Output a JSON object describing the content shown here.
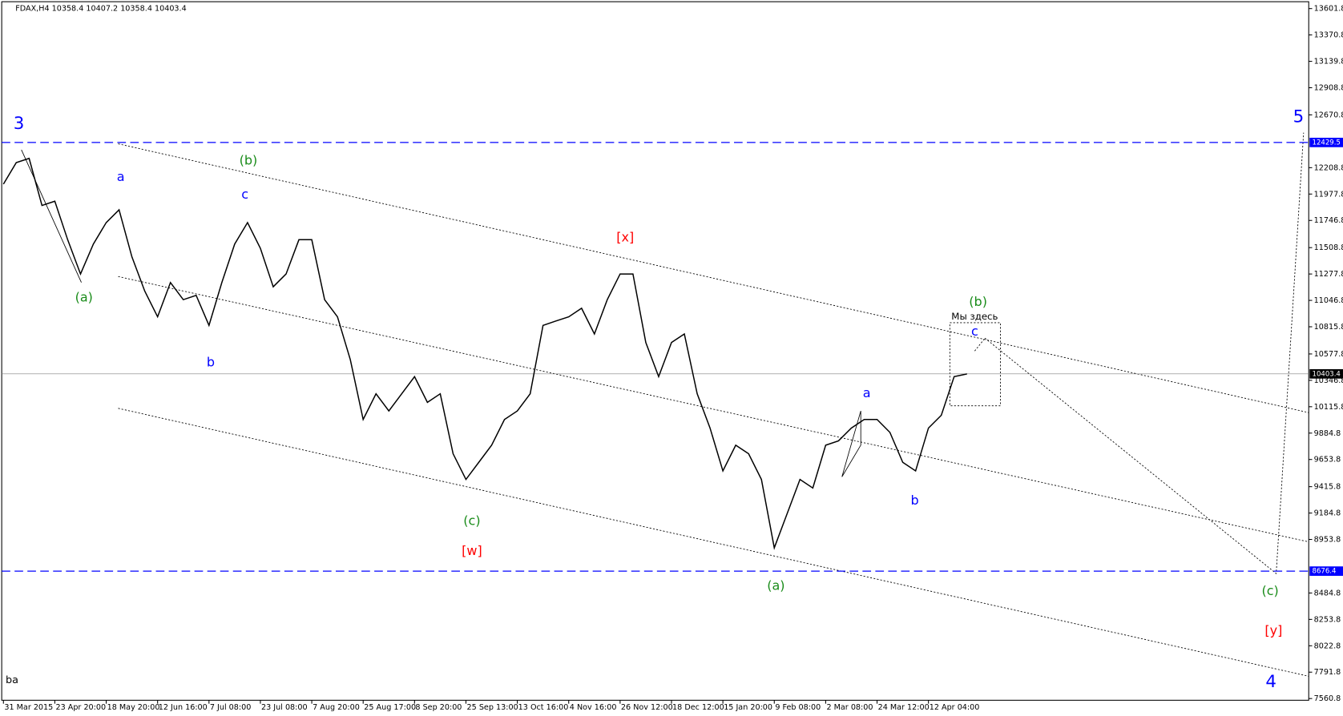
{
  "chart_data": {
    "type": "line",
    "title": "FDAX,H4  10358.4 10407.2 10358.4 10403.4",
    "categories": [
      "31 Mar 2015",
      null,
      null,
      null,
      "23 Apr 20:00",
      null,
      null,
      null,
      "18 May 20:00",
      null,
      null,
      null,
      "12 Jun 16:00",
      null,
      null,
      null,
      "7 Jul 08:00",
      null,
      null,
      null,
      "23 Jul 08:00",
      null,
      null,
      null,
      "7 Aug 20:00",
      null,
      null,
      null,
      "25 Aug 17:00",
      null,
      null,
      null,
      "8 Sep 20:00",
      null,
      null,
      null,
      "25 Sep 13:00",
      null,
      null,
      null,
      "13 Oct 16:00",
      null,
      null,
      null,
      "4 Nov 16:00",
      null,
      null,
      null,
      "26 Nov 12:00",
      null,
      null,
      null,
      "18 Dec 12:00",
      null,
      null,
      null,
      "15 Jan 20:00",
      null,
      null,
      null,
      "9 Feb 08:00",
      null,
      null,
      null,
      "2 Mar 08:00",
      null,
      null,
      null,
      "24 Mar 12:00",
      null,
      null,
      null,
      "12 Apr 04:00",
      null,
      null,
      null
    ],
    "values": [
      12065,
      12253,
      12290,
      11878,
      11915,
      11578,
      11278,
      11540,
      11728,
      11840,
      11428,
      11128,
      10903,
      11203,
      11053,
      11091,
      10828,
      11203,
      11540,
      11728,
      11503,
      11166,
      11278,
      11578,
      11578,
      11053,
      10903,
      10528,
      10004,
      10229,
      10079,
      10229,
      10379,
      10154,
      10229,
      9704,
      9479,
      9629,
      9779,
      10004,
      10079,
      10229,
      10828,
      10866,
      10903,
      10978,
      10753,
      11053,
      11278,
      11278,
      10678,
      10379,
      10678,
      10753,
      10229,
      9929,
      9554,
      9779,
      9704,
      9479,
      8880,
      9179,
      9479,
      9404,
      9779,
      9817,
      9929,
      10004,
      10004,
      9891,
      9629,
      9554,
      9929,
      10041,
      10379,
      10403
    ],
    "color": "#000000",
    "ylim": [
      7515.8,
      13676.8
    ],
    "yticks": [
      13601.8,
      13370.8,
      13139.8,
      12908.8,
      12670.8,
      12208.8,
      11977.8,
      11746.8,
      11508.8,
      11277.8,
      11046.8,
      10815.8,
      10577.8,
      10346.8,
      10115.8,
      9884.8,
      9653.8,
      9415.8,
      9184.8,
      8953.8,
      8484.8,
      8253.8,
      8022.8,
      7791.8,
      7560.8
    ],
    "levels": [
      {
        "value": 12429.5,
        "color": "#0000ff",
        "style": "dashed"
      },
      {
        "value": 10403.4,
        "color": "#808080",
        "style": "solid"
      },
      {
        "value": 8676.4,
        "color": "#0000ff",
        "style": "dashed"
      }
    ],
    "annotations": [
      {
        "text": "3",
        "color": "#0000ff"
      },
      {
        "text": "a",
        "color": "#0000ff"
      },
      {
        "text": "(b)",
        "color": "#1a8c1a"
      },
      {
        "text": "c",
        "color": "#0000ff"
      },
      {
        "text": "(a)",
        "color": "#1a8c1a"
      },
      {
        "text": "b",
        "color": "#0000ff"
      },
      {
        "text": "[x]",
        "color": "#ff0000"
      },
      {
        "text": "(c)",
        "color": "#1a8c1a"
      },
      {
        "text": "[w]",
        "color": "#ff0000"
      },
      {
        "text": "(a)",
        "color": "#1a8c1a"
      },
      {
        "text": "a",
        "color": "#0000ff"
      },
      {
        "text": "b",
        "color": "#0000ff"
      },
      {
        "text": "(b)",
        "color": "#1a8c1a"
      },
      {
        "text": "Мы здесь",
        "color": "#000000"
      },
      {
        "text": "c",
        "color": "#0000ff"
      },
      {
        "text": "5",
        "color": "#0000ff"
      },
      {
        "text": "(c)",
        "color": "#1a8c1a"
      },
      {
        "text": "[y]",
        "color": "#ff0000"
      },
      {
        "text": "4",
        "color": "#0000ff"
      },
      {
        "text": "ba",
        "color": "#000000"
      }
    ]
  }
}
